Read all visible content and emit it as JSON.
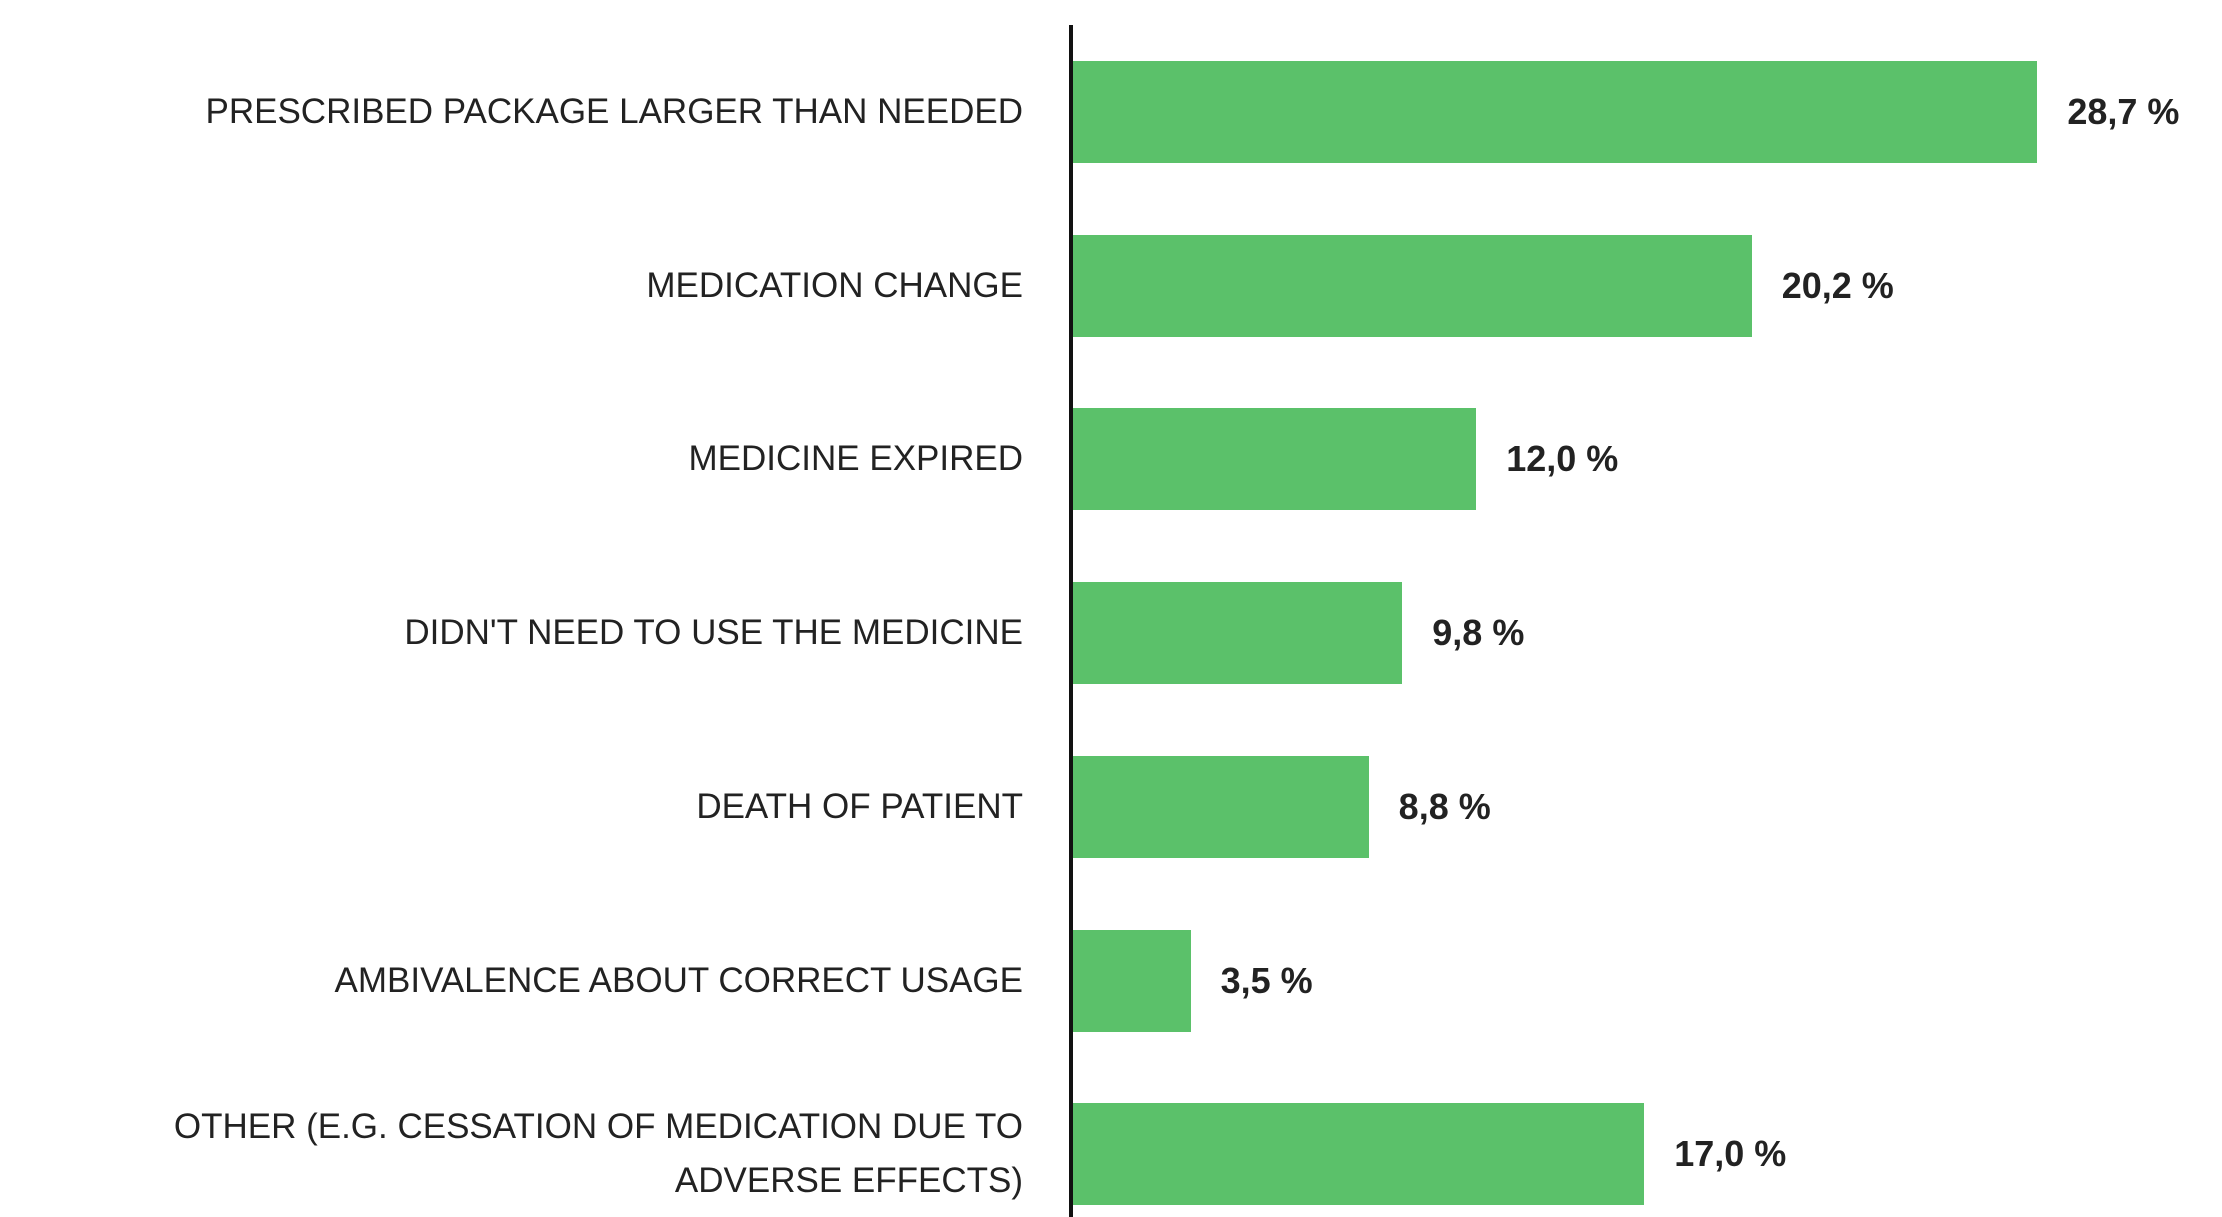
{
  "chart_data": {
    "type": "bar",
    "orientation": "horizontal",
    "color": "#5bc16a",
    "categories": [
      "PRESCRIBED PACKAGE LARGER THAN NEEDED",
      "MEDICATION CHANGE",
      "MEDICINE EXPIRED",
      "DIDN'T NEED TO USE THE MEDICINE",
      "DEATH OF PATIENT",
      "AMBIVALENCE ABOUT CORRECT USAGE",
      "OTHER (E.G. CESSATION OF MEDICATION DUE TO ADVERSE EFFECTS)"
    ],
    "values": [
      28.7,
      20.2,
      12.0,
      9.8,
      8.8,
      3.5,
      17.0
    ],
    "value_labels": [
      "28,7 %",
      "20,2 %",
      "12,0 %",
      "9,8 %",
      "8,8 %",
      "3,5 %",
      "17,0 %"
    ]
  }
}
